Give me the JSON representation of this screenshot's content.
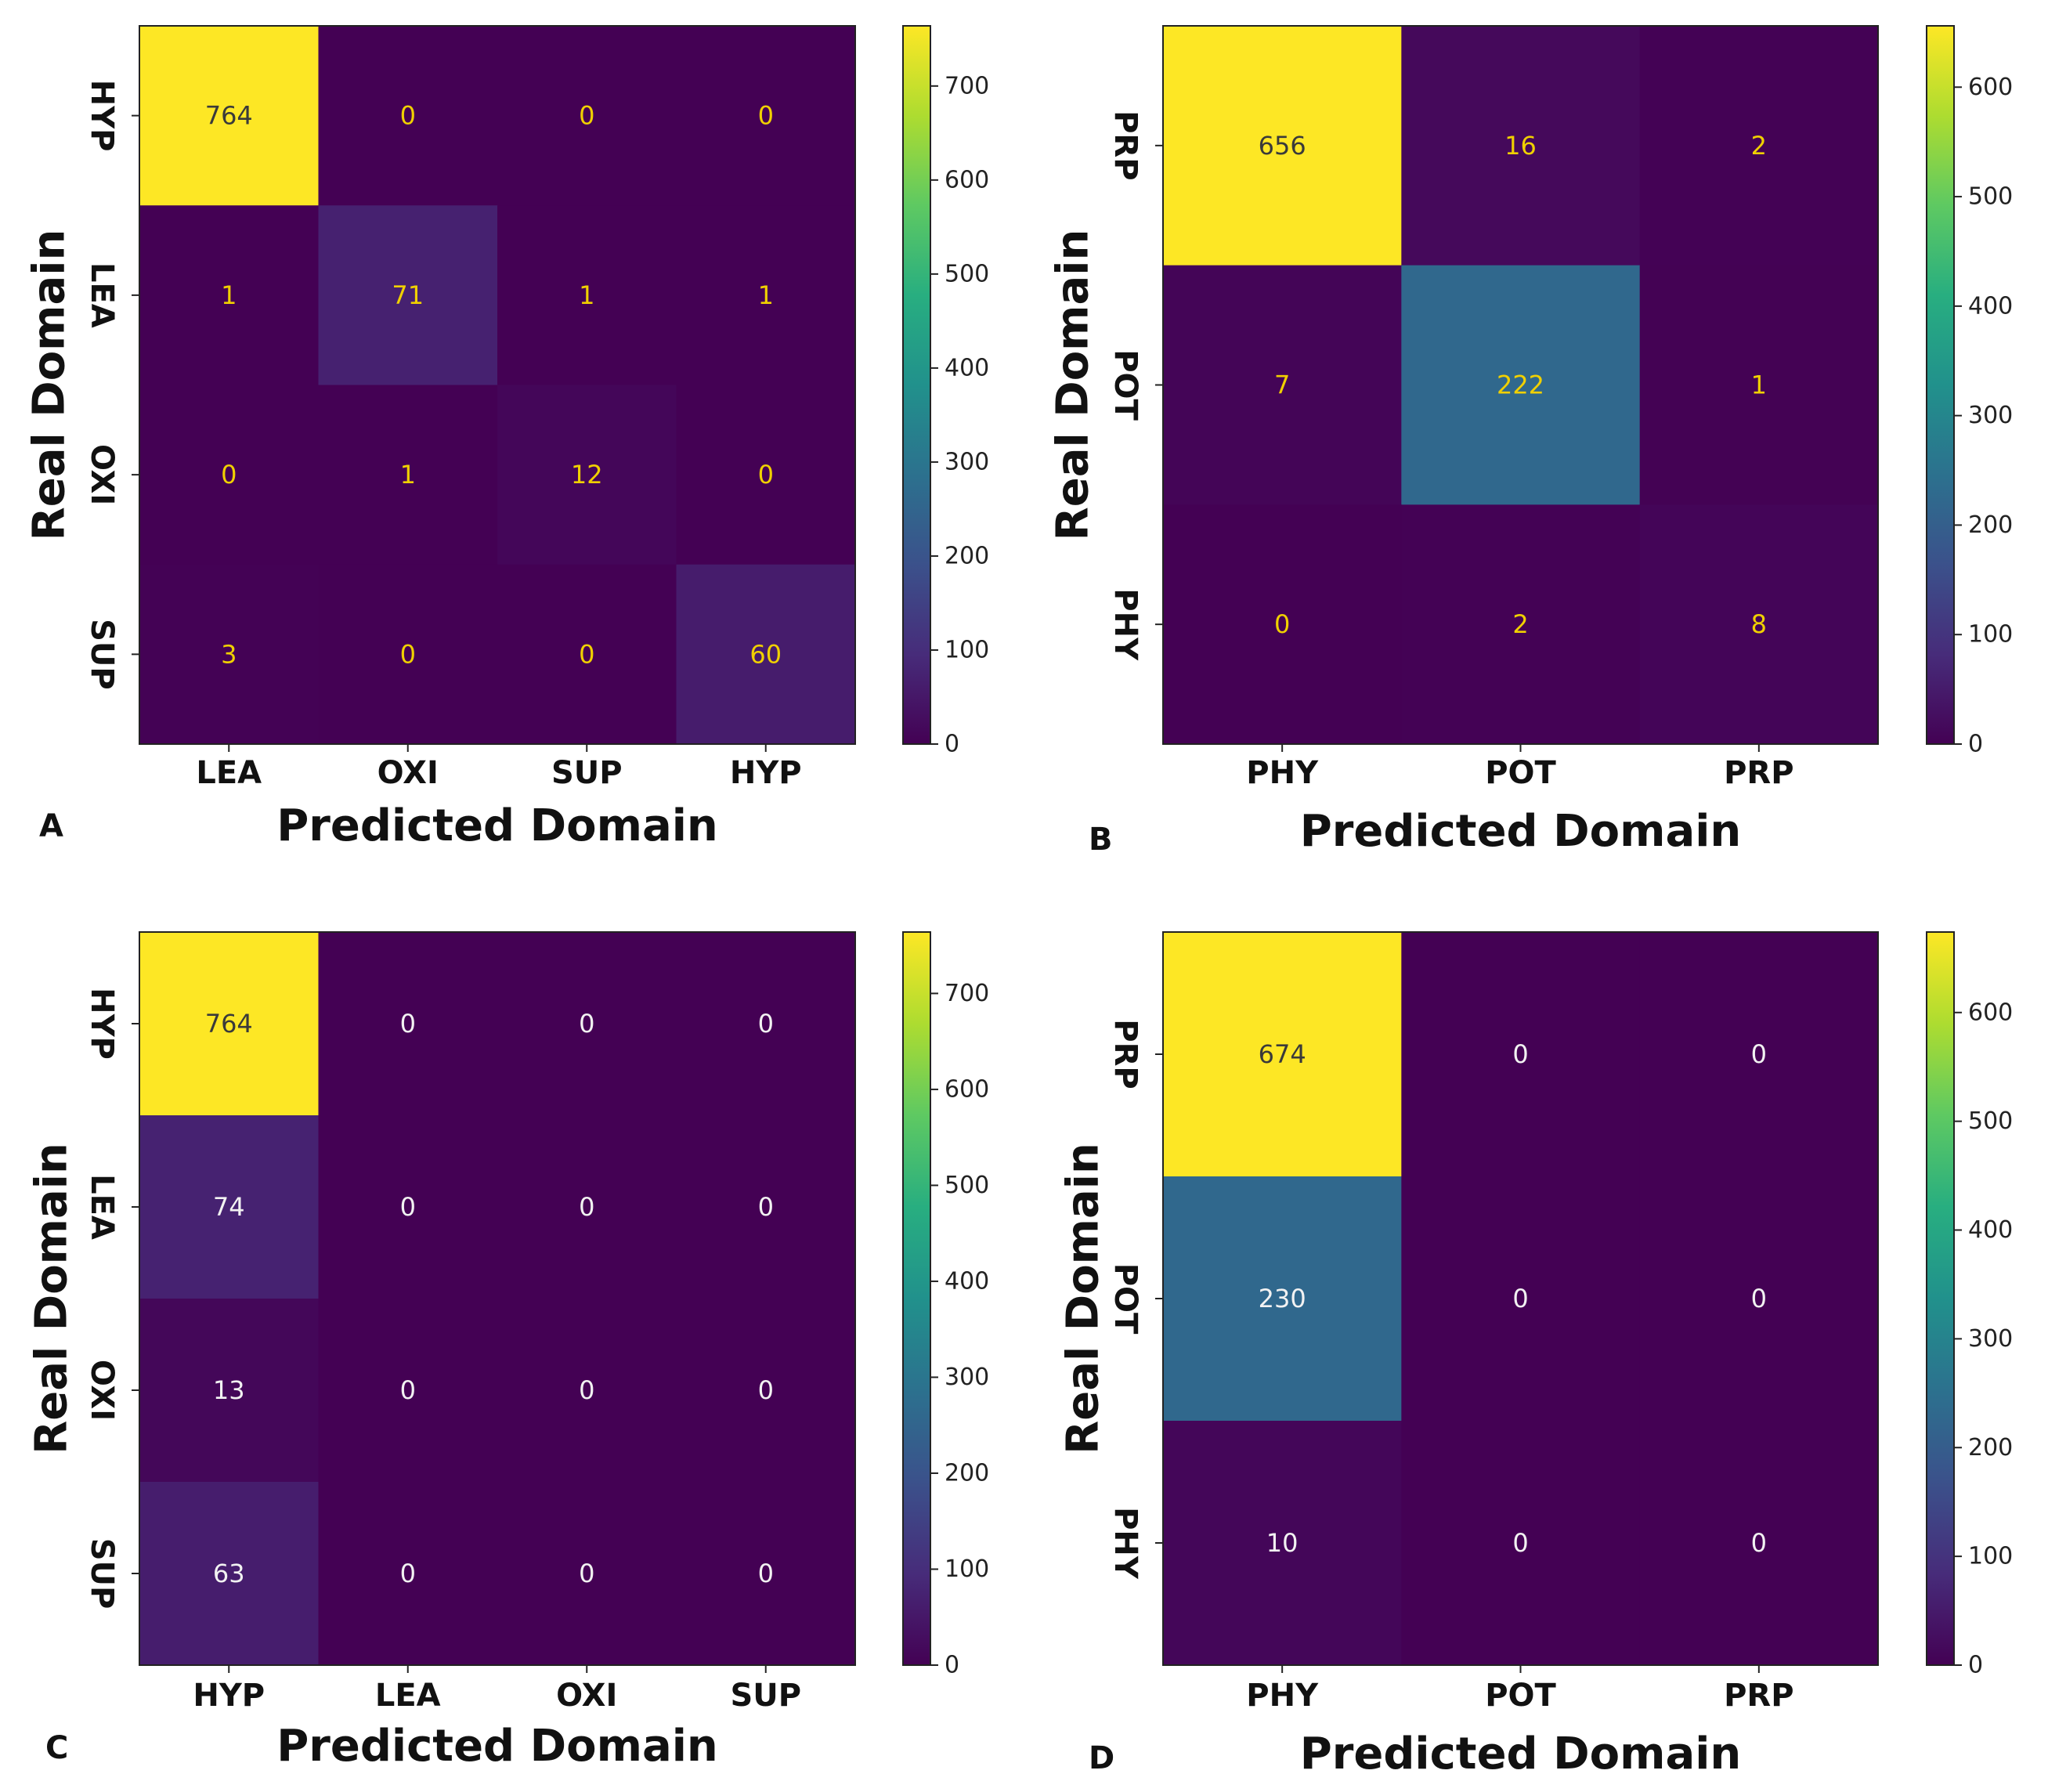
{
  "chart_data": [
    {
      "panel": "A",
      "type": "heatmap",
      "xlabel": "Predicted Domain",
      "ylabel": "Real Domain",
      "x_categories": [
        "LEA",
        "OXI",
        "SUP",
        "HYP"
      ],
      "y_categories": [
        "HYP",
        "LEA",
        "OXI",
        "SUP"
      ],
      "values": [
        [
          764,
          0,
          0,
          0
        ],
        [
          1,
          71,
          1,
          1
        ],
        [
          0,
          1,
          12,
          0
        ],
        [
          3,
          0,
          0,
          60
        ]
      ],
      "colorbar": {
        "min": 0,
        "max": 764,
        "ticks": [
          0,
          100,
          200,
          300,
          400,
          500,
          600,
          700
        ]
      }
    },
    {
      "panel": "B",
      "type": "heatmap",
      "xlabel": "Predicted Domain",
      "ylabel": "Real Domain",
      "x_categories": [
        "PHY",
        "POT",
        "PRP"
      ],
      "y_categories": [
        "PRP",
        "POT",
        "PHY"
      ],
      "values": [
        [
          656,
          16,
          2
        ],
        [
          7,
          222,
          1
        ],
        [
          0,
          2,
          8
        ]
      ],
      "colorbar": {
        "min": 0,
        "max": 656,
        "ticks": [
          0,
          100,
          200,
          300,
          400,
          500,
          600
        ]
      }
    },
    {
      "panel": "C",
      "type": "heatmap",
      "xlabel": "Predicted Domain",
      "ylabel": "Real Domain",
      "x_categories": [
        "HYP",
        "LEA",
        "OXI",
        "SUP"
      ],
      "y_categories": [
        "HYP",
        "LEA",
        "OXI",
        "SUP"
      ],
      "values": [
        [
          764,
          0,
          0,
          0
        ],
        [
          74,
          0,
          0,
          0
        ],
        [
          13,
          0,
          0,
          0
        ],
        [
          63,
          0,
          0,
          0
        ]
      ],
      "colorbar": {
        "min": 0,
        "max": 764,
        "ticks": [
          0,
          100,
          200,
          300,
          400,
          500,
          600,
          700
        ]
      }
    },
    {
      "panel": "D",
      "type": "heatmap",
      "xlabel": "Predicted Domain",
      "ylabel": "Real Domain",
      "x_categories": [
        "PHY",
        "POT",
        "PRP"
      ],
      "y_categories": [
        "PRP",
        "POT",
        "PHY"
      ],
      "values": [
        [
          674,
          0,
          0
        ],
        [
          230,
          0,
          0
        ],
        [
          10,
          0,
          0
        ]
      ],
      "colorbar": {
        "min": 0,
        "max": 674,
        "ticks": [
          0,
          100,
          200,
          300,
          400,
          500,
          600
        ]
      }
    }
  ]
}
